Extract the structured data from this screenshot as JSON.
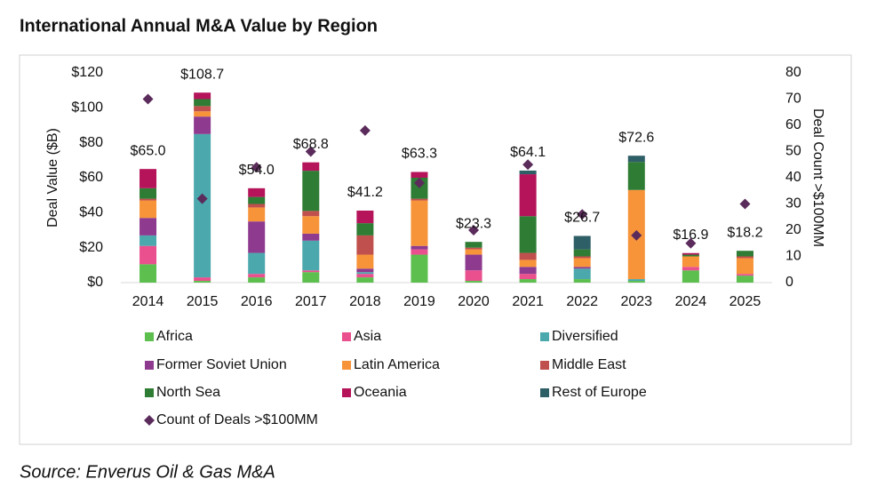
{
  "title": "International Annual M&A Value by Region",
  "source": "Source: Enverus Oil & Gas M&A",
  "chart_data": {
    "type": "bar",
    "stacked": true,
    "ylabel": "Deal Value ($B)",
    "y2label": "Deal Count >$100MM",
    "categories": [
      "2014",
      "2015",
      "2016",
      "2017",
      "2018",
      "2019",
      "2020",
      "2021",
      "2022",
      "2023",
      "2024",
      "2025"
    ],
    "ylim": [
      0,
      120
    ],
    "yticks": [
      {
        "value": 0,
        "label": "$0"
      },
      {
        "value": 20,
        "label": "$20"
      },
      {
        "value": 40,
        "label": "$40"
      },
      {
        "value": 60,
        "label": "$60"
      },
      {
        "value": 80,
        "label": "$80"
      },
      {
        "value": 100,
        "label": "$100"
      },
      {
        "value": 120,
        "label": "$120"
      }
    ],
    "y2lim": [
      0,
      80
    ],
    "y2ticks": [
      0,
      10,
      20,
      30,
      40,
      50,
      60,
      70,
      80
    ],
    "series": [
      {
        "name": "Africa",
        "color": "#5cbf4e",
        "values": [
          10.5,
          1,
          3,
          6,
          3,
          16,
          1,
          2,
          2,
          1,
          7,
          4
        ]
      },
      {
        "name": "Asia",
        "color": "#ea4f8e",
        "values": [
          10.5,
          2,
          2,
          1,
          2,
          3,
          6,
          3,
          0,
          0,
          2,
          1
        ]
      },
      {
        "name": "Diversified",
        "color": "#4ba8ad",
        "values": [
          6,
          82,
          12,
          17,
          1,
          0,
          0,
          0,
          6,
          1,
          0,
          0
        ]
      },
      {
        "name": "Former Soviet Union",
        "color": "#8e3a8f",
        "values": [
          10,
          10,
          18,
          4,
          2,
          2,
          9,
          4,
          1,
          0,
          0,
          0
        ]
      },
      {
        "name": "Latin America",
        "color": "#f7943a",
        "values": [
          10,
          3,
          8,
          10,
          8,
          26,
          3,
          4,
          5,
          51,
          6,
          9
        ]
      },
      {
        "name": "Middle East",
        "color": "#c0504d",
        "values": [
          1,
          3,
          2,
          3,
          11,
          1,
          1,
          4,
          1,
          0,
          0,
          1
        ]
      },
      {
        "name": "North Sea",
        "color": "#2f7c34",
        "values": [
          6,
          4,
          4,
          23,
          7,
          12,
          3.3,
          21,
          4,
          16,
          1,
          3.2
        ]
      },
      {
        "name": "Oceania",
        "color": "#b5135a",
        "values": [
          11,
          3.7,
          5,
          4.8,
          7.2,
          3.3,
          0,
          24,
          0,
          0,
          0.9,
          0
        ]
      },
      {
        "name": "Rest of Europe",
        "color": "#2e5e66",
        "values": [
          0,
          0,
          0,
          0,
          0,
          0,
          0,
          2.1,
          7.7,
          3.6,
          0,
          0
        ]
      },
      {
        "name": "Count of Deals >$100MM",
        "type": "scatter",
        "axis": "y2",
        "color": "#5b2c5b",
        "values": [
          70,
          32,
          44,
          50,
          58,
          38,
          20,
          45,
          26,
          18,
          15,
          30
        ]
      }
    ],
    "totals": {
      "values": [
        65.0,
        108.7,
        54.0,
        68.8,
        41.2,
        63.3,
        23.3,
        64.1,
        26.7,
        72.6,
        16.9,
        18.2
      ],
      "value_labels": [
        "$65.0",
        "$108.7",
        "$54.0",
        "$68.8",
        "$41.2",
        "$63.3",
        "$23.3",
        "$64.1",
        "$26.7",
        "$72.6",
        "$16.9",
        "$18.2"
      ]
    }
  }
}
